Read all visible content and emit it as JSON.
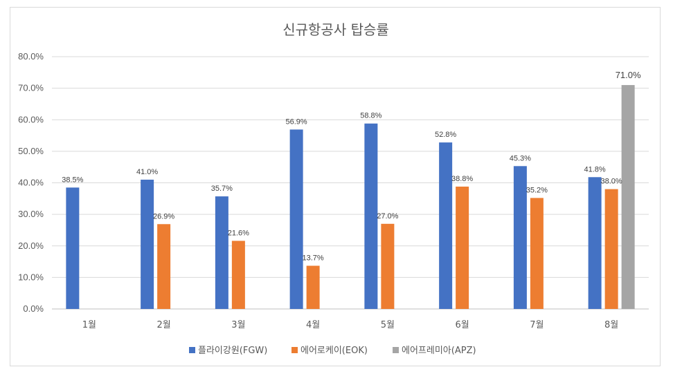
{
  "chart_data": {
    "type": "bar",
    "title": "신규항공사 탑승률",
    "categories": [
      "1월",
      "2월",
      "3월",
      "4월",
      "5월",
      "6월",
      "7월",
      "8월"
    ],
    "series": [
      {
        "name": "플라이강원(FGW)",
        "color": "#4472C4",
        "values": [
          38.5,
          41.0,
          35.7,
          56.9,
          58.8,
          52.8,
          45.3,
          41.8
        ],
        "labels": [
          "38.5%",
          "41.0%",
          "35.7%",
          "56.9%",
          "58.8%",
          "52.8%",
          "45.3%",
          "41.8%"
        ]
      },
      {
        "name": "에어로케이(EOK)",
        "color": "#ED7D31",
        "values": [
          null,
          26.9,
          21.6,
          13.7,
          27.0,
          38.8,
          35.2,
          38.0
        ],
        "labels": [
          "",
          "26.9%",
          "21.6%",
          "13.7%",
          "27.0%",
          "38.8%",
          "35.2%",
          "38.0%"
        ]
      },
      {
        "name": "에어프레미아(APZ)",
        "color": "#A5A5A5",
        "values": [
          null,
          null,
          null,
          null,
          null,
          null,
          null,
          71.0
        ],
        "labels": [
          "",
          "",
          "",
          "",
          "",
          "",
          "",
          "71.0%"
        ]
      }
    ],
    "yticks": [
      "0.0%",
      "10.0%",
      "20.0%",
      "30.0%",
      "40.0%",
      "50.0%",
      "60.0%",
      "70.0%",
      "80.0%"
    ],
    "ylim": [
      0,
      80
    ],
    "grid": true,
    "legend": "bottom"
  }
}
